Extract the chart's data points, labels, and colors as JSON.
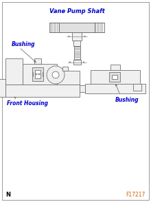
{
  "title": "Vane Pump Shaft",
  "label_bushing_front": "Bushing",
  "label_bushing_rear": "Bushing",
  "label_front_housing": "Front Housing",
  "label_figure": "F17217",
  "label_n": "N",
  "bg_color": "#ffffff",
  "label_color_blue": "#0000cc",
  "line_color": "#707070",
  "light_fill": "#f0f0f0",
  "med_fill": "#e0e0e0",
  "dark_fill": "#c8c8c8",
  "figsize": [
    2.2,
    2.94
  ],
  "dpi": 100
}
